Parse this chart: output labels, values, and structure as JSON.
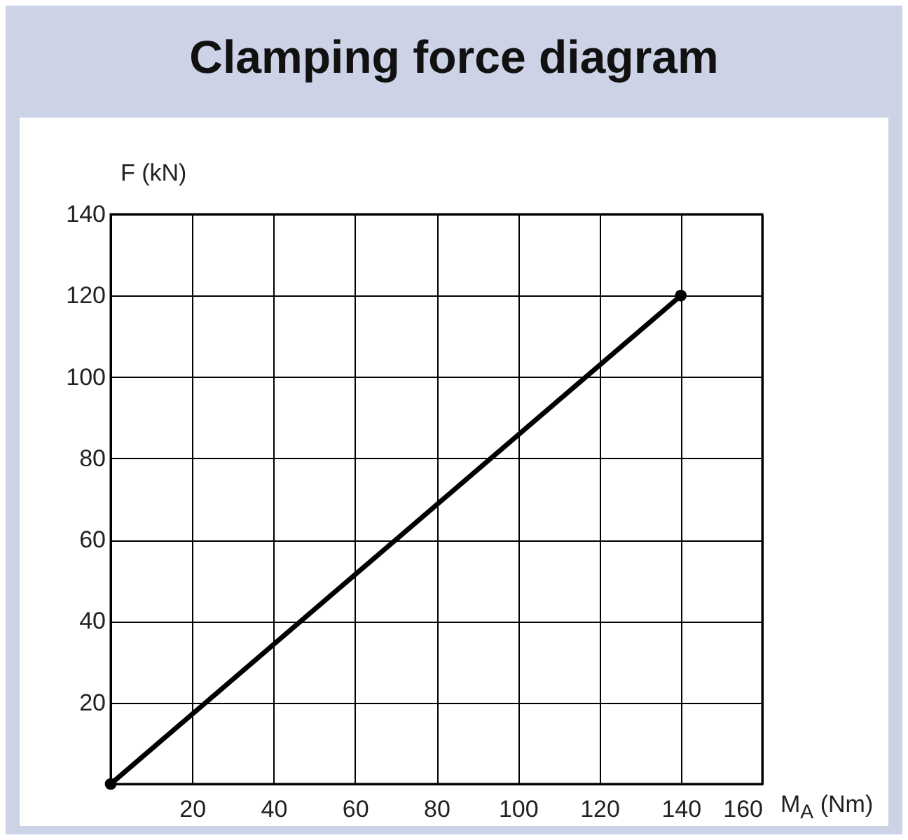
{
  "chart_data": {
    "type": "line",
    "title": "Clamping force diagram",
    "xlabel": "M$_{A}$ (Nm)",
    "ylabel": "F (kN)",
    "x": [
      0,
      140
    ],
    "series": [
      {
        "color": "#000000",
        "values": [
          0,
          120
        ]
      }
    ],
    "xlim": [
      0,
      160
    ],
    "xticks": [
      {
        "value": 0,
        "label": null
      },
      20,
      40,
      60,
      80,
      100,
      120,
      140,
      160
    ],
    "ylim": [
      0,
      140
    ],
    "yticks": [
      {
        "value": 0,
        "label": null
      },
      20,
      40,
      60,
      80,
      100,
      120,
      140
    ],
    "grid": true,
    "marker": "circle",
    "line_style": "solid",
    "legend": false
  }
}
